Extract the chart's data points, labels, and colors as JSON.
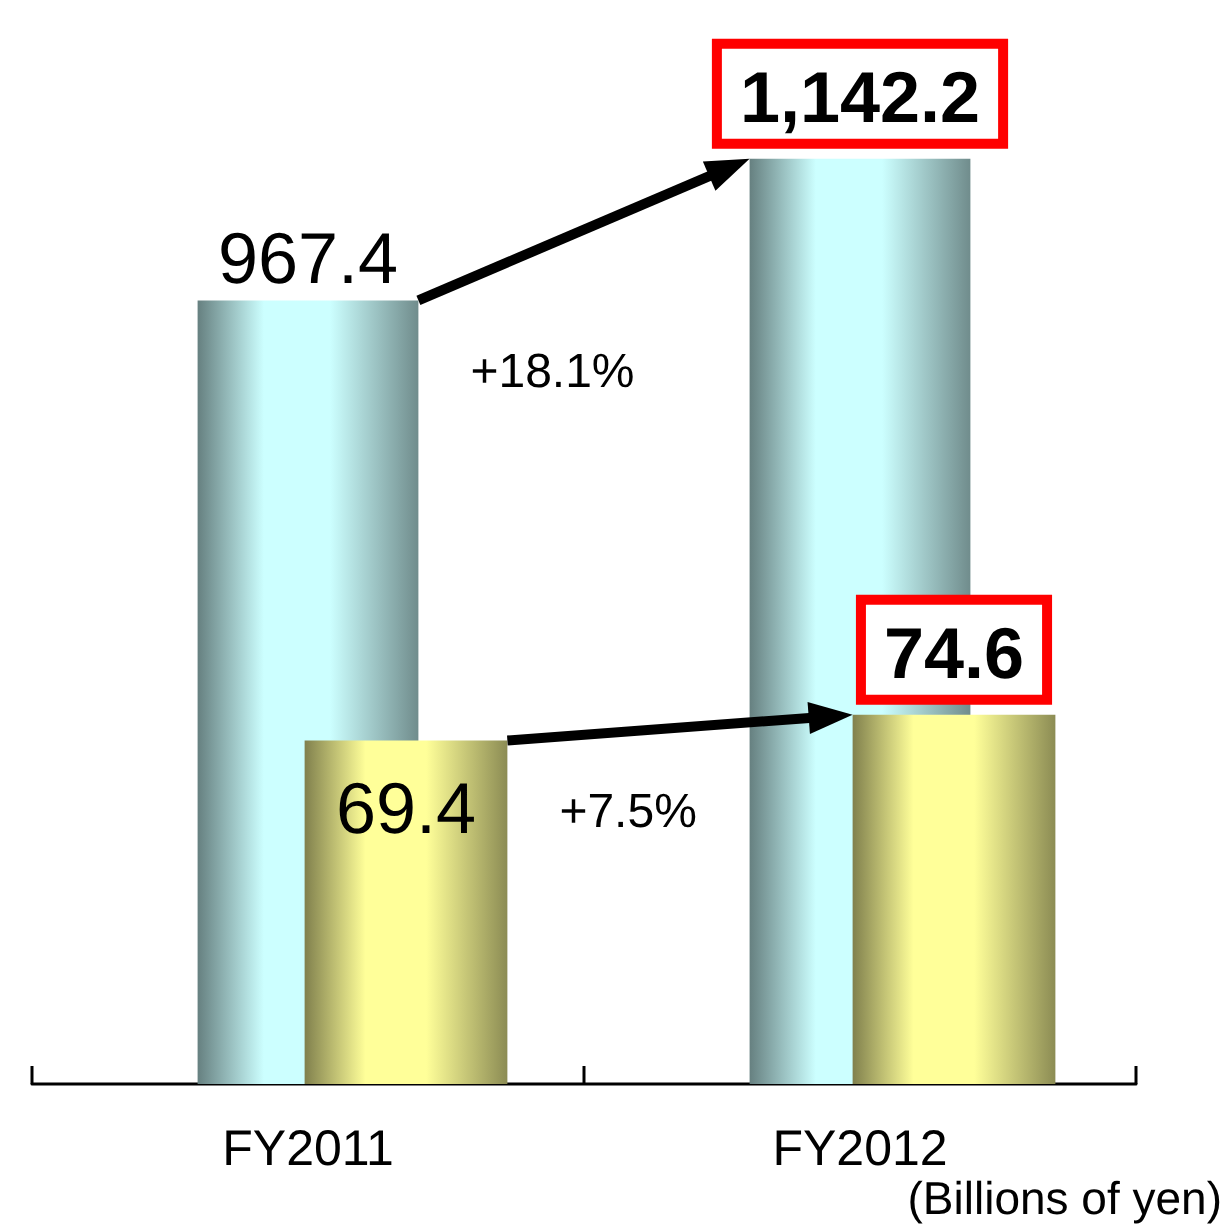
{
  "chart_data": {
    "type": "bar",
    "categories": [
      "FY2011",
      "FY2012"
    ],
    "series": [
      {
        "color": "#ccffff",
        "values": [
          967.4,
          1142.2
        ],
        "value_labels": [
          "967.4",
          "1,142.2"
        ]
      },
      {
        "color": "#ffff99",
        "values": [
          69.4,
          74.6
        ],
        "value_labels": [
          "69.4",
          "74.6"
        ],
        "axis": "y2"
      }
    ],
    "tick_labels": "x",
    "grid": false,
    "annotations": [
      "+18.1%",
      "+7.5%",
      "(Billions of yen)"
    ]
  }
}
